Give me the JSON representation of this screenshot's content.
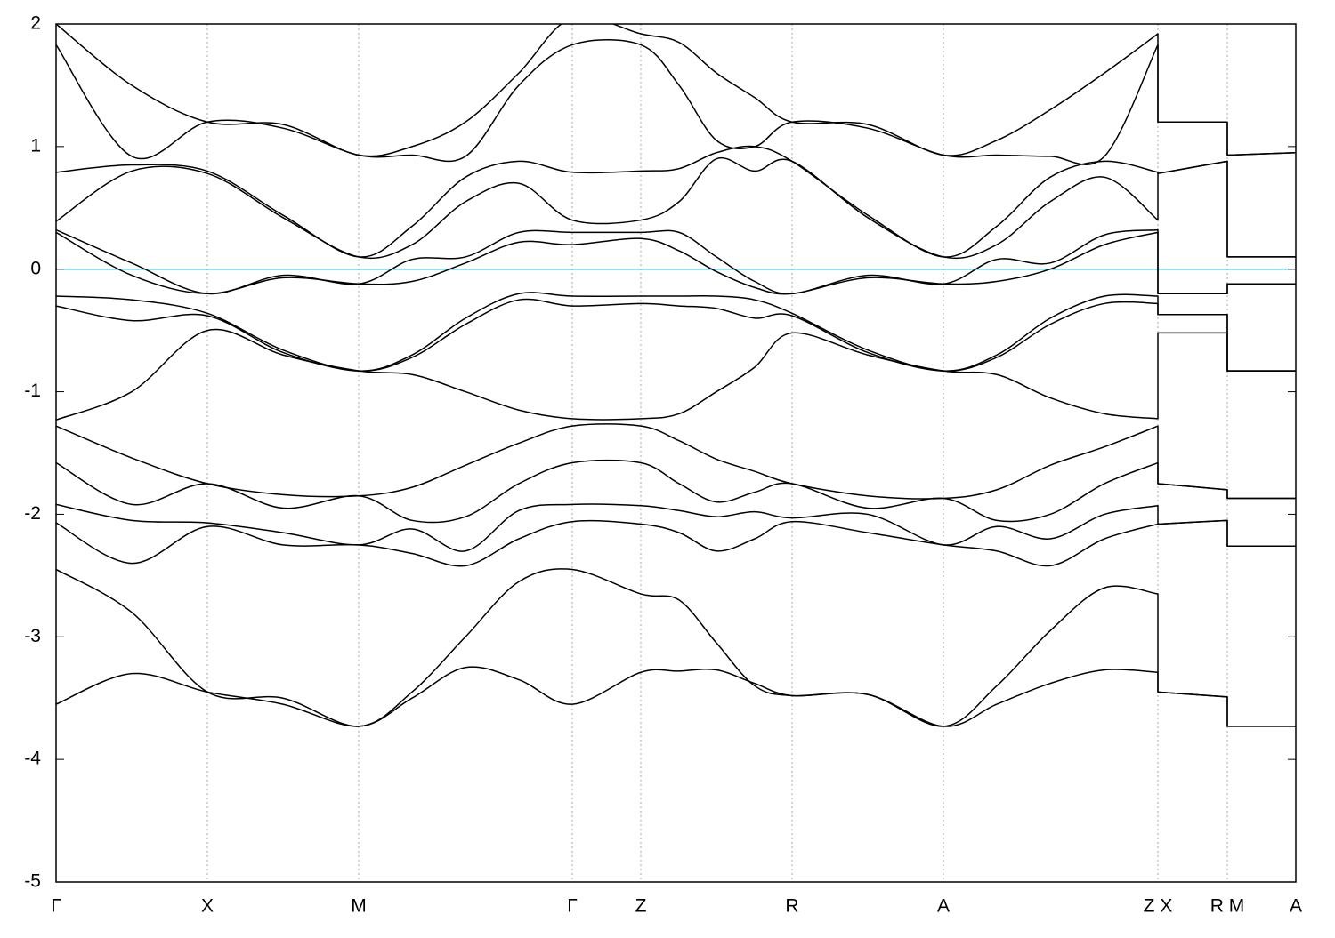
{
  "chart_data": {
    "type": "line",
    "x": [
      0,
      0.85,
      1.7,
      2.55,
      3.4,
      4.0,
      4.6,
      5.2,
      5.8,
      6.57,
      7.0,
      7.42,
      7.85,
      8.27,
      9.12,
      9.97,
      10.57,
      11.17,
      11.78,
      12.38,
      12.38,
      13.16,
      13.16,
      13.93
    ],
    "xlim": [
      0,
      13.93
    ],
    "xticks": [
      {
        "value": 0,
        "label": "Γ"
      },
      {
        "value": 1.7,
        "label": "X"
      },
      {
        "value": 3.4,
        "label": "M"
      },
      {
        "value": 5.8,
        "label": "Γ"
      },
      {
        "value": 6.57,
        "label": "Z"
      },
      {
        "value": 8.27,
        "label": "R"
      },
      {
        "value": 9.97,
        "label": "A"
      },
      {
        "value": 12.38,
        "label": "Z X"
      },
      {
        "value": 13.16,
        "label": "R M"
      },
      {
        "value": 13.93,
        "label": "A"
      }
    ],
    "ylim": [
      -5,
      2
    ],
    "yticks": [
      -5,
      -4,
      -3,
      -2,
      -1,
      0,
      1,
      2
    ],
    "grid": true,
    "color": "#000000",
    "hlines": [
      {
        "y": 0,
        "color": "#5fb4c8"
      }
    ],
    "bands": [
      {
        "values": [
          -3.55,
          -3.3,
          -3.45,
          -3.55,
          -3.73,
          -3.5,
          -3.25,
          -3.35,
          -3.55,
          -3.29,
          -3.28,
          -3.27,
          -3.38,
          -3.48,
          -3.47,
          -3.73,
          -3.55,
          -3.38,
          -3.27,
          -3.29,
          -3.45,
          -3.49,
          -3.73,
          -3.73
        ]
      },
      {
        "values": [
          -2.45,
          -2.8,
          -3.45,
          -3.5,
          -3.73,
          -3.45,
          -3.0,
          -2.55,
          -2.45,
          -2.65,
          -2.7,
          -3.05,
          -3.4,
          -3.48,
          -3.47,
          -3.73,
          -3.4,
          -2.95,
          -2.6,
          -2.65,
          -3.45,
          -3.49,
          -3.73,
          -3.73
        ]
      },
      {
        "values": [
          -2.07,
          -2.4,
          -2.1,
          -2.25,
          -2.25,
          -2.32,
          -2.42,
          -2.2,
          -2.06,
          -2.08,
          -2.15,
          -2.3,
          -2.2,
          -2.06,
          -2.15,
          -2.25,
          -2.3,
          -2.42,
          -2.2,
          -2.08,
          -2.08,
          -2.05,
          -2.26,
          -2.26
        ]
      },
      {
        "values": [
          -1.92,
          -2.05,
          -2.07,
          -2.15,
          -2.25,
          -2.12,
          -2.3,
          -1.97,
          -1.92,
          -1.93,
          -1.97,
          -2.02,
          -1.98,
          -2.03,
          -2.0,
          -2.25,
          -2.1,
          -2.2,
          -2.0,
          -1.93,
          -2.08,
          -2.05,
          -2.26,
          -2.26
        ]
      },
      {
        "values": [
          -1.58,
          -1.92,
          -1.75,
          -1.95,
          -1.85,
          -2.05,
          -2.02,
          -1.75,
          -1.58,
          -1.58,
          -1.75,
          -1.9,
          -1.82,
          -1.75,
          -1.95,
          -1.87,
          -2.05,
          -2.0,
          -1.75,
          -1.58,
          -1.75,
          -1.8,
          -1.87,
          -1.87
        ]
      },
      {
        "values": [
          -1.28,
          -1.54,
          -1.75,
          -1.84,
          -1.85,
          -1.78,
          -1.6,
          -1.42,
          -1.28,
          -1.28,
          -1.4,
          -1.55,
          -1.65,
          -1.75,
          -1.85,
          -1.87,
          -1.8,
          -1.6,
          -1.45,
          -1.28,
          -1.75,
          -1.8,
          -1.87,
          -1.87
        ]
      },
      {
        "values": [
          -1.23,
          -1.0,
          -0.5,
          -0.7,
          -0.83,
          -0.86,
          -1.0,
          -1.15,
          -1.22,
          -1.22,
          -1.18,
          -1.0,
          -0.8,
          -0.52,
          -0.7,
          -0.83,
          -0.86,
          -1.05,
          -1.18,
          -1.22,
          -0.52,
          -0.52,
          -0.83,
          -0.83
        ]
      },
      {
        "values": [
          -0.3,
          -0.42,
          -0.38,
          -0.68,
          -0.83,
          -0.72,
          -0.45,
          -0.25,
          -0.3,
          -0.28,
          -0.3,
          -0.32,
          -0.4,
          -0.38,
          -0.68,
          -0.83,
          -0.72,
          -0.45,
          -0.28,
          -0.28,
          -0.37,
          -0.37,
          -0.83,
          -0.83
        ]
      },
      {
        "values": [
          -0.22,
          -0.25,
          -0.36,
          -0.66,
          -0.83,
          -0.7,
          -0.4,
          -0.2,
          -0.22,
          -0.22,
          -0.22,
          -0.22,
          -0.25,
          -0.36,
          -0.66,
          -0.83,
          -0.7,
          -0.4,
          -0.22,
          -0.22,
          -0.37,
          -0.37,
          -0.83,
          -0.83
        ]
      },
      {
        "values": [
          0.3,
          -0.05,
          -0.2,
          -0.07,
          -0.12,
          -0.1,
          0.05,
          0.22,
          0.2,
          0.25,
          0.15,
          -0.02,
          -0.15,
          -0.2,
          -0.07,
          -0.12,
          -0.1,
          0.0,
          0.2,
          0.3,
          -0.2,
          -0.2,
          -0.12,
          -0.12
        ]
      },
      {
        "values": [
          0.32,
          0.05,
          -0.2,
          -0.05,
          -0.12,
          0.08,
          0.1,
          0.3,
          0.3,
          0.3,
          0.3,
          0.1,
          -0.1,
          -0.2,
          -0.05,
          -0.12,
          0.08,
          0.05,
          0.28,
          0.32,
          -0.2,
          -0.2,
          -0.12,
          -0.12
        ]
      },
      {
        "values": [
          0.39,
          0.8,
          0.78,
          0.42,
          0.1,
          0.2,
          0.55,
          0.7,
          0.4,
          0.4,
          0.55,
          0.9,
          0.8,
          0.88,
          0.42,
          0.1,
          0.2,
          0.55,
          0.75,
          0.4,
          0.78,
          0.88,
          0.1,
          0.1
        ]
      },
      {
        "values": [
          0.79,
          0.85,
          0.8,
          0.44,
          0.1,
          0.35,
          0.75,
          0.88,
          0.79,
          0.8,
          0.82,
          0.95,
          1.0,
          0.88,
          0.44,
          0.1,
          0.35,
          0.75,
          0.88,
          0.79,
          0.78,
          0.88,
          0.1,
          0.1
        ]
      },
      {
        "values": [
          1.83,
          0.92,
          1.2,
          1.15,
          0.93,
          0.93,
          0.92,
          1.5,
          1.83,
          1.83,
          1.5,
          1.05,
          1.0,
          1.2,
          1.15,
          0.93,
          0.93,
          0.92,
          0.92,
          1.83,
          1.2,
          1.2,
          0.93,
          0.95
        ]
      },
      {
        "values": [
          2.0,
          1.5,
          1.2,
          1.18,
          0.93,
          1.0,
          1.2,
          1.6,
          2.05,
          1.92,
          1.85,
          1.6,
          1.4,
          1.2,
          1.18,
          0.93,
          1.05,
          1.3,
          1.6,
          1.92,
          1.2,
          1.2,
          0.93,
          0.95
        ]
      }
    ]
  }
}
